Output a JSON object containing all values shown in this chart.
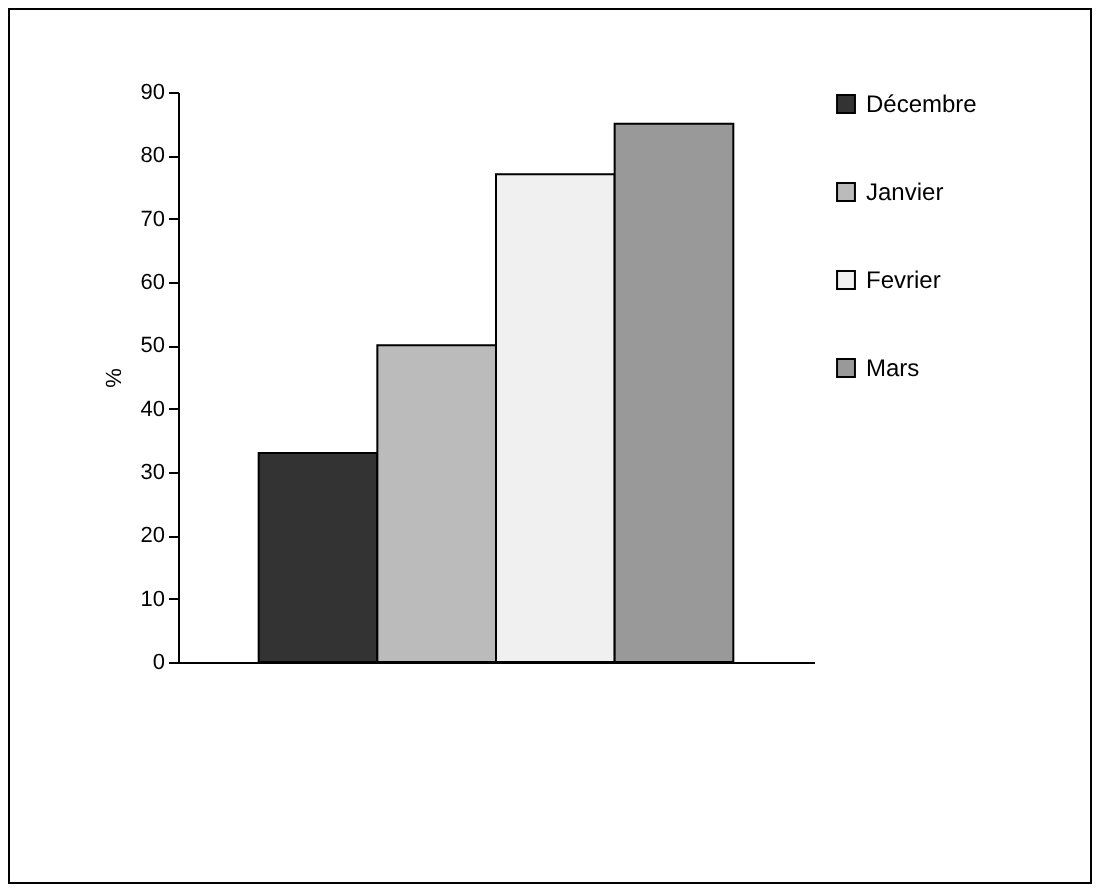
{
  "chart_data": {
    "type": "bar",
    "ylabel": "%",
    "categories": [
      null
    ],
    "series": [
      {
        "name": "Décembre",
        "color": "#333333",
        "values": [
          33
        ]
      },
      {
        "name": "Janvier",
        "color": "#bbbbbb",
        "values": [
          50
        ]
      },
      {
        "name": "Fevrier",
        "color": "#f0f0f0",
        "values": [
          77
        ]
      },
      {
        "name": "Mars",
        "color": "#999999",
        "values": [
          85
        ]
      }
    ],
    "ylim": [
      0,
      90
    ],
    "yticks": [
      0,
      10,
      20,
      30,
      40,
      50,
      60,
      70,
      80,
      90
    ],
    "grid": false,
    "legend": "right"
  }
}
